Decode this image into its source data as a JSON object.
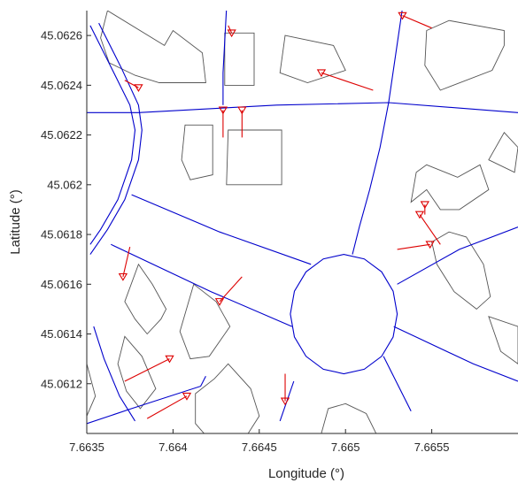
{
  "chart_data": {
    "type": "map",
    "xlabel": "Longitude (°)",
    "ylabel": "Latitude (°)",
    "xlim": [
      7.6635,
      7.666
    ],
    "ylim": [
      7.66,
      45.0627
    ],
    "ylim_true": [
      45.061,
      45.0627
    ],
    "x_ticks": [
      {
        "value": 7.6635,
        "label": "7.6635"
      },
      {
        "value": 7.664,
        "label": "7.664"
      },
      {
        "value": 7.6645,
        "label": "7.6645"
      },
      {
        "value": 7.665,
        "label": "7.665"
      },
      {
        "value": 7.6655,
        "label": "7.6655"
      }
    ],
    "y_ticks": [
      {
        "value": 45.0612,
        "label": "45.0612"
      },
      {
        "value": 45.0614,
        "label": "45.0614"
      },
      {
        "value": 45.0616,
        "label": "45.0616"
      },
      {
        "value": 45.0618,
        "label": "45.0618"
      },
      {
        "value": 45.062,
        "label": "45.062"
      },
      {
        "value": 45.0622,
        "label": "45.0622"
      },
      {
        "value": 45.0624,
        "label": "45.0624"
      },
      {
        "value": 45.0626,
        "label": "45.0626"
      }
    ],
    "grid": false,
    "colors": {
      "roads": "#0000cc",
      "buildings": "#555555",
      "connectors": "#dd0000",
      "markers": "#dd0000"
    },
    "roads": [
      [
        [
          7.66352,
          45.06264
        ],
        [
          7.66365,
          45.06246
        ],
        [
          7.66375,
          45.06232
        ],
        [
          7.66378,
          45.06222
        ],
        [
          7.66376,
          45.0621
        ],
        [
          7.66368,
          45.06194
        ],
        [
          7.66358,
          45.06182
        ],
        [
          7.66352,
          45.06176
        ]
      ],
      [
        [
          7.66357,
          45.06265
        ],
        [
          7.6637,
          45.06247
        ],
        [
          7.6638,
          45.06232
        ],
        [
          7.66382,
          45.06222
        ],
        [
          7.6638,
          45.0621
        ],
        [
          7.66372,
          45.06194
        ],
        [
          7.66362,
          45.06182
        ],
        [
          7.66352,
          45.06172
        ]
      ],
      [
        [
          7.6635,
          45.06229
        ],
        [
          7.6638,
          45.06229
        ],
        [
          7.6646,
          45.06232
        ],
        [
          7.66525,
          45.06233
        ],
        [
          7.666,
          45.06229
        ]
      ],
      [
        [
          7.66431,
          45.06271
        ],
        [
          7.66429,
          45.06245
        ],
        [
          7.66429,
          45.06232
        ]
      ],
      [
        [
          7.66533,
          45.06271
        ],
        [
          7.66525,
          45.06233
        ],
        [
          7.6652,
          45.06215
        ],
        [
          7.66514,
          45.06198
        ],
        [
          7.66508,
          45.06183
        ],
        [
          7.66504,
          45.06172
        ]
      ],
      [
        [
          7.66376,
          45.06196
        ],
        [
          7.66427,
          45.06181
        ],
        [
          7.6648,
          45.06168
        ]
      ],
      [
        [
          7.66364,
          45.06176
        ],
        [
          7.66422,
          45.06157
        ],
        [
          7.66469,
          45.06143
        ]
      ],
      [
        [
          7.66354,
          45.06143
        ],
        [
          7.6636,
          45.0613
        ],
        [
          7.66369,
          45.06115
        ],
        [
          7.66378,
          45.06105
        ]
      ],
      [
        [
          7.6635,
          45.06104
        ],
        [
          7.66376,
          45.0611
        ],
        [
          7.66416,
          45.06119
        ],
        [
          7.66419,
          45.06123
        ]
      ],
      [
        [
          7.6647,
          45.06121
        ],
        [
          7.66462,
          45.06105
        ]
      ],
      [
        [
          7.66522,
          45.06131
        ],
        [
          7.66538,
          45.06109
        ]
      ],
      [
        [
          7.6653,
          45.0616
        ],
        [
          7.66566,
          45.06174
        ],
        [
          7.666,
          45.06183
        ]
      ],
      [
        [
          7.66528,
          45.06143
        ],
        [
          7.66574,
          45.06128
        ],
        [
          7.666,
          45.06121
        ]
      ]
    ],
    "roundabout": {
      "center": [
        7.66499,
        45.06148
      ],
      "radius_deg_lon": 0.00031,
      "radius_deg_lat": 0.00024
    },
    "buildings": [
      [
        [
          7.66362,
          45.0627
        ],
        [
          7.66395,
          45.06256
        ],
        [
          7.664,
          45.06262
        ],
        [
          7.66417,
          45.06253
        ],
        [
          7.66419,
          45.06241
        ],
        [
          7.66392,
          45.06241
        ],
        [
          7.66378,
          45.06244
        ],
        [
          7.66363,
          45.06249
        ],
        [
          7.66358,
          45.06259
        ]
      ],
      [
        [
          7.6643,
          45.06261
        ],
        [
          7.66447,
          45.06261
        ],
        [
          7.66447,
          45.0624
        ],
        [
          7.6643,
          45.0624
        ]
      ],
      [
        [
          7.66465,
          45.0626
        ],
        [
          7.66493,
          45.06256
        ],
        [
          7.665,
          45.06246
        ],
        [
          7.66478,
          45.06241
        ],
        [
          7.66462,
          45.06245
        ]
      ],
      [
        [
          7.6656,
          45.06266
        ],
        [
          7.66592,
          45.06262
        ],
        [
          7.66592,
          45.06256
        ],
        [
          7.66585,
          45.06246
        ],
        [
          7.66555,
          45.06238
        ],
        [
          7.66546,
          45.06248
        ],
        [
          7.66547,
          45.06262
        ]
      ],
      [
        [
          7.66407,
          45.06224
        ],
        [
          7.66423,
          45.06224
        ],
        [
          7.66423,
          45.06204
        ],
        [
          7.6641,
          45.06202
        ],
        [
          7.66405,
          45.0621
        ]
      ],
      [
        [
          7.66432,
          45.06222
        ],
        [
          7.66463,
          45.06222
        ],
        [
          7.66463,
          45.062
        ],
        [
          7.66431,
          45.062
        ]
      ],
      [
        [
          7.66547,
          45.06208
        ],
        [
          7.66565,
          45.06203
        ],
        [
          7.66578,
          45.06208
        ],
        [
          7.66583,
          45.06198
        ],
        [
          7.66566,
          45.0619
        ],
        [
          7.66555,
          45.0619
        ],
        [
          7.66547,
          45.06198
        ],
        [
          7.66538,
          45.06193
        ],
        [
          7.66541,
          45.06205
        ]
      ],
      [
        [
          7.66583,
          45.0621
        ],
        [
          7.66598,
          45.06205
        ],
        [
          7.666,
          45.06215
        ],
        [
          7.66592,
          45.06221
        ]
      ],
      [
        [
          7.6655,
          45.06177
        ],
        [
          7.6656,
          45.06181
        ],
        [
          7.6657,
          45.06179
        ],
        [
          7.6658,
          45.06168
        ],
        [
          7.66584,
          45.06155
        ],
        [
          7.66576,
          45.0615
        ],
        [
          7.66563,
          45.06157
        ],
        [
          7.66553,
          45.06168
        ]
      ],
      [
        [
          7.6638,
          45.06168
        ],
        [
          7.66388,
          45.0616
        ],
        [
          7.66396,
          45.0615
        ],
        [
          7.66393,
          45.06146
        ],
        [
          7.66385,
          45.0614
        ],
        [
          7.66378,
          45.06146
        ],
        [
          7.66372,
          45.06153
        ]
      ],
      [
        [
          7.66412,
          45.0616
        ],
        [
          7.66425,
          45.06153
        ],
        [
          7.66433,
          45.06143
        ],
        [
          7.66421,
          45.06131
        ],
        [
          7.6641,
          45.0613
        ],
        [
          7.66404,
          45.06141
        ]
      ],
      [
        [
          7.66372,
          45.06139
        ],
        [
          7.66382,
          45.06131
        ],
        [
          7.6639,
          45.06118
        ],
        [
          7.66381,
          45.0611
        ],
        [
          7.66373,
          45.06117
        ],
        [
          7.66368,
          45.06128
        ]
      ],
      [
        [
          7.66432,
          45.06128
        ],
        [
          7.66445,
          45.06118
        ],
        [
          7.6645,
          45.06107
        ],
        [
          7.66438,
          45.06094
        ],
        [
          7.66423,
          45.06096
        ],
        [
          7.66413,
          45.06104
        ],
        [
          7.66413,
          45.06116
        ],
        [
          7.66424,
          45.06122
        ]
      ],
      [
        [
          7.665,
          45.06112
        ],
        [
          7.66512,
          45.06108
        ],
        [
          7.66522,
          45.06094
        ],
        [
          7.66513,
          45.06084
        ],
        [
          7.66498,
          45.06089
        ],
        [
          7.66486,
          45.061
        ],
        [
          7.6649,
          45.0611
        ]
      ],
      [
        [
          7.6635,
          45.06128
        ],
        [
          7.66355,
          45.06115
        ],
        [
          7.6635,
          45.06107
        ]
      ],
      [
        [
          7.66583,
          45.06147
        ],
        [
          7.666,
          45.06143
        ],
        [
          7.666,
          45.06128
        ],
        [
          7.6659,
          45.06133
        ]
      ]
    ],
    "connectors": [
      {
        "from": [
          7.6638,
          45.06239
        ],
        "to": [
          7.66372,
          45.06242
        ]
      },
      {
        "from": [
          7.66434,
          45.06261
        ],
        "to": [
          7.66432,
          45.06264
        ]
      },
      {
        "from": [
          7.66486,
          45.06245
        ],
        "to": [
          7.66516,
          45.06238
        ]
      },
      {
        "from": [
          7.66533,
          45.06268
        ],
        "to": [
          7.6655,
          45.06263
        ]
      },
      {
        "from": [
          7.66429,
          45.0623
        ],
        "to": [
          7.66429,
          45.06219
        ]
      },
      {
        "from": [
          7.6644,
          45.0623
        ],
        "to": [
          7.6644,
          45.06219
        ]
      },
      {
        "from": [
          7.66546,
          45.06192
        ],
        "to": [
          7.66546,
          45.06188
        ]
      },
      {
        "from": [
          7.66543,
          45.06188
        ],
        "to": [
          7.66555,
          45.06176
        ]
      },
      {
        "from": [
          7.66549,
          45.06176
        ],
        "to": [
          7.6653,
          45.06174
        ]
      },
      {
        "from": [
          7.66371,
          45.06163
        ],
        "to": [
          7.66375,
          45.06175
        ]
      },
      {
        "from": [
          7.66427,
          45.06153
        ],
        "to": [
          7.6644,
          45.06163
        ]
      },
      {
        "from": [
          7.66398,
          45.0613
        ],
        "to": [
          7.66372,
          45.06121
        ]
      },
      {
        "from": [
          7.66408,
          45.06115
        ],
        "to": [
          7.66385,
          45.06106
        ]
      },
      {
        "from": [
          7.66465,
          45.06113
        ],
        "to": [
          7.66465,
          45.06124
        ]
      }
    ]
  }
}
